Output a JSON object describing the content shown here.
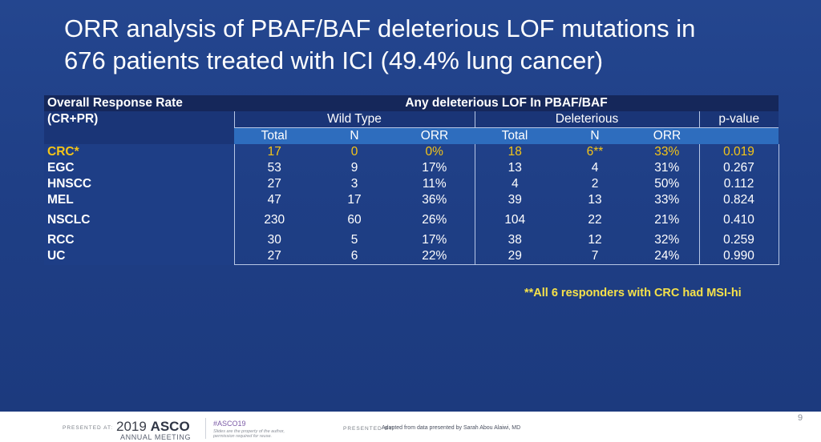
{
  "title": {
    "line1": "ORR analysis of PBAF/BAF deleterious LOF mutations in",
    "line2": "676 patients treated with ICI (49.4% lung cancer)"
  },
  "table": {
    "stub_header_1": "Overall Response Rate",
    "stub_header_2": "(CR+PR)",
    "spanner": "Any deleterious LOF In PBAF/BAF",
    "group_wild": "Wild Type",
    "group_del": "Deleterious",
    "group_p": "p-value",
    "sub_headers": [
      "Total",
      "N",
      "ORR",
      "Total",
      "N",
      "ORR"
    ],
    "rows": [
      {
        "label": "CRC*",
        "wt_total": "17",
        "wt_n": "0",
        "wt_orr": "0%",
        "del_total": "18",
        "del_n": "6**",
        "del_orr": "33%",
        "p": "0.019"
      },
      {
        "label": "EGC",
        "wt_total": "53",
        "wt_n": "9",
        "wt_orr": "17%",
        "del_total": "13",
        "del_n": "4",
        "del_orr": "31%",
        "p": "0.267"
      },
      {
        "label": "HNSCC",
        "wt_total": "27",
        "wt_n": "3",
        "wt_orr": "11%",
        "del_total": "4",
        "del_n": "2",
        "del_orr": "50%",
        "p": "0.112"
      },
      {
        "label": "MEL",
        "wt_total": "47",
        "wt_n": "17",
        "wt_orr": "36%",
        "del_total": "39",
        "del_n": "13",
        "del_orr": "33%",
        "p": "0.824"
      },
      {
        "label": "NSCLC",
        "wt_total": "230",
        "wt_n": "60",
        "wt_orr": "26%",
        "del_total": "104",
        "del_n": "22",
        "del_orr": "21%",
        "p": "0.410"
      },
      {
        "label": "RCC",
        "wt_total": "30",
        "wt_n": "5",
        "wt_orr": "17%",
        "del_total": "38",
        "del_n": "12",
        "del_orr": "32%",
        "p": "0.259"
      },
      {
        "label": "UC",
        "wt_total": "27",
        "wt_n": "6",
        "wt_orr": "22%",
        "del_total": "29",
        "del_n": "7",
        "del_orr": "24%",
        "p": "0.990"
      }
    ]
  },
  "footnote": "**All 6 responders with CRC had MSI-hi",
  "footer": {
    "presented_at": "PRESENTED AT:",
    "meeting_year": "2019",
    "meeting_name": "ASCO",
    "meeting_sub": "ANNUAL MEETING",
    "hashtag": "#ASCO19",
    "slides_note": "Slides are the property of the author, permission required for reuse.",
    "presented_by": "PRESENTED BY:",
    "adapted": "Adapted from data presented by Sarah Abou Alaiwi, MD",
    "page_number": "9"
  },
  "colors": {
    "background": "#1f3f86",
    "header_dark": "#15275a",
    "subheader_blue": "#2e6dbe",
    "highlight": "#f5c518",
    "footnote": "#f5e14a"
  }
}
